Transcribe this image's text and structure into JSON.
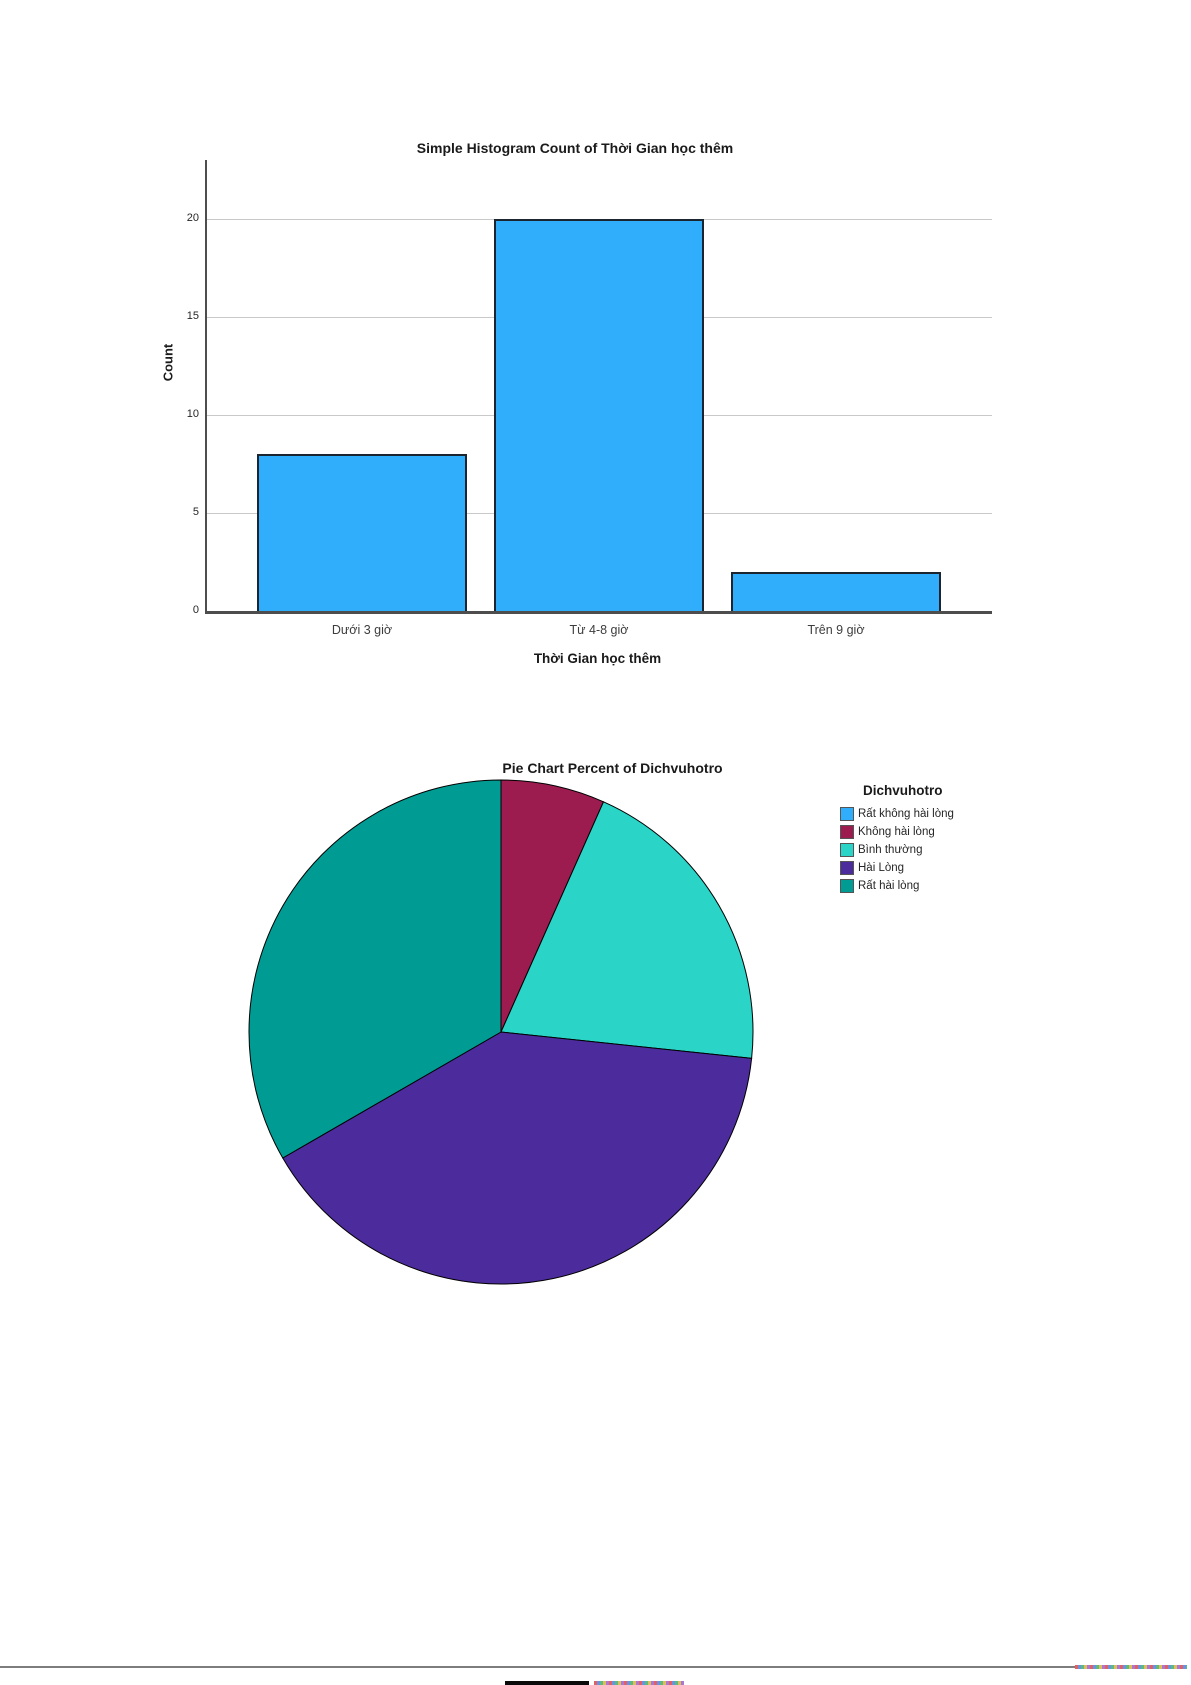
{
  "chart_data": [
    {
      "type": "bar",
      "title": "Simple Histogram Count of Thời Gian học thêm",
      "xlabel": "Thời Gian học thêm",
      "ylabel": "Count",
      "categories": [
        "Dưới 3 giờ",
        "Từ 4-8 giờ",
        "Trên 9 giờ"
      ],
      "values": [
        8,
        20,
        2
      ],
      "yticks": [
        0,
        5,
        10,
        15,
        20
      ],
      "ylim": [
        0,
        23
      ],
      "grid": true,
      "bar_color": "#30ADFB",
      "bar_border_color": "#1b2530",
      "axis_color": "#4d4d4d"
    },
    {
      "type": "pie",
      "title": "Pie Chart Percent of Dichvuhotro",
      "legend_title": "Dichvuhotro",
      "legend_position": "right",
      "start_angle_deg": 0,
      "direction": "clockwise",
      "series": [
        {
          "name": "Rất không hài lòng",
          "percent": 0,
          "color": "#30ADFB"
        },
        {
          "name": "Không hài lòng",
          "percent": 6.667,
          "color": "#9C1C50"
        },
        {
          "name": "Bình thường",
          "percent": 20,
          "color": "#2AD5C8"
        },
        {
          "name": "Hài Lòng",
          "percent": 40,
          "color": "#4C2B9C"
        },
        {
          "name": "Rất hài lòng",
          "percent": 33.333,
          "color": "#009C94"
        }
      ]
    }
  ]
}
